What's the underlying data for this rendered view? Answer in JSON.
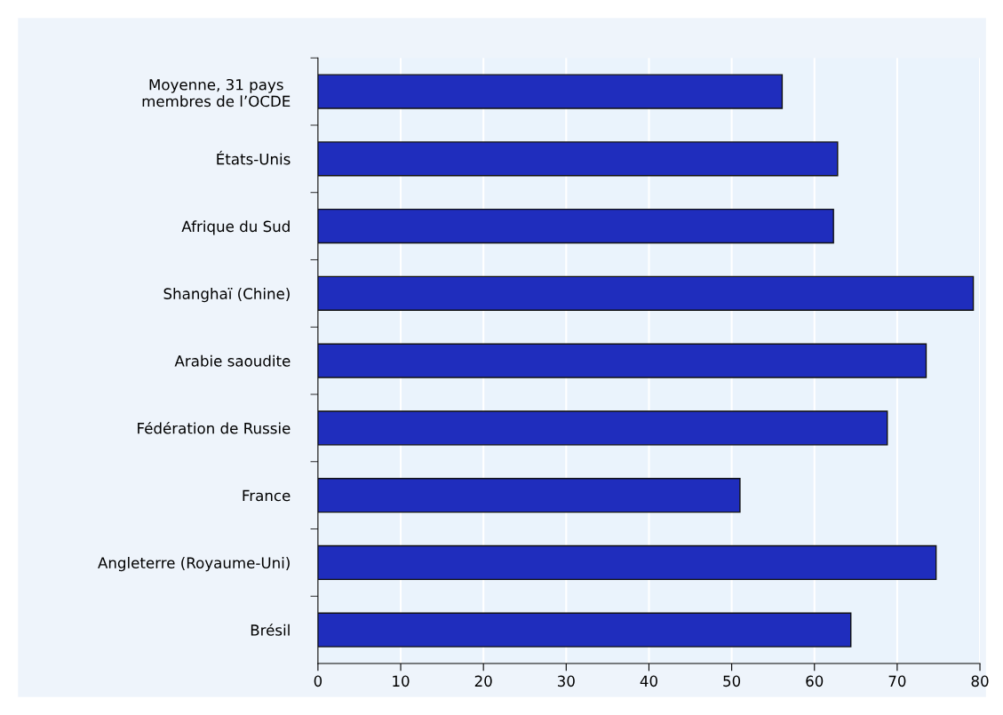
{
  "chart_data": {
    "type": "bar",
    "orientation": "horizontal",
    "categories": [
      "Moyenne, 31 pays\nmembres de l’OCDE",
      "États-Unis",
      "Afrique du Sud",
      "Shanghaï (Chine)",
      "Arabie saoudite",
      "Fédération de Russie",
      "France",
      "Angleterre (Royaume-Uni)",
      "Brésil"
    ],
    "values": [
      56.1,
      62.8,
      62.3,
      79.2,
      73.5,
      68.8,
      51.0,
      74.7,
      64.4
    ],
    "color": "#1f2dbd",
    "xlim": [
      0,
      80
    ],
    "xticks": [
      0,
      10,
      20,
      30,
      40,
      50,
      60,
      70,
      80
    ],
    "grid": "x"
  }
}
